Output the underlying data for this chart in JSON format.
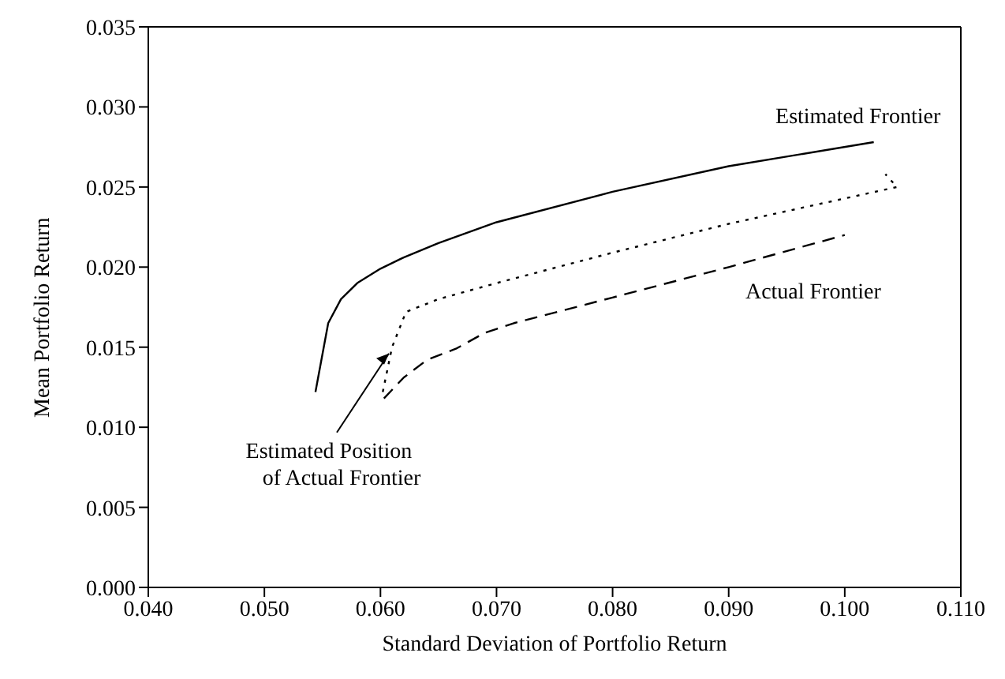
{
  "chart_data": {
    "type": "line",
    "xlabel": "Standard Deviation of Portfolio Return",
    "ylabel": "Mean Portfolio Return",
    "xlim": [
      0.04,
      0.11
    ],
    "ylim": [
      0,
      0.035
    ],
    "xticks": [
      {
        "value": 0.04,
        "label": "0.040"
      },
      {
        "value": 0.05,
        "label": "0.050"
      },
      {
        "value": 0.06,
        "label": "0.060"
      },
      {
        "value": 0.07,
        "label": "0.070"
      },
      {
        "value": 0.08,
        "label": "0.080"
      },
      {
        "value": 0.09,
        "label": "0.090"
      },
      {
        "value": 0.1,
        "label": "0.100"
      },
      {
        "value": 0.11,
        "label": "0.110"
      }
    ],
    "yticks": [
      {
        "value": 0,
        "label": "0.000"
      },
      {
        "value": 0.005,
        "label": "0.005"
      },
      {
        "value": 0.01,
        "label": "0.010"
      },
      {
        "value": 0.015,
        "label": "0.015"
      },
      {
        "value": 0.02,
        "label": "0.020"
      },
      {
        "value": 0.025,
        "label": "0.025"
      },
      {
        "value": 0.03,
        "label": "0.030"
      },
      {
        "value": 0.035,
        "label": "0.035"
      }
    ],
    "marker": "none",
    "series": [
      {
        "name": "Estimated Frontier",
        "color": "#000000",
        "line_style": "solid",
        "x": [
          0.0544,
          0.0555,
          0.0566,
          0.058,
          0.06,
          0.062,
          0.065,
          0.07,
          0.08,
          0.09,
          0.1025
        ],
        "values": [
          0.0122,
          0.0165,
          0.018,
          0.019,
          0.0199,
          0.0206,
          0.0215,
          0.0228,
          0.0247,
          0.0263,
          0.0278
        ]
      },
      {
        "name": "Estimated Position of Actual Frontier",
        "color": "#000000",
        "line_style": "dotted",
        "x": [
          0.0602,
          0.061,
          0.0622,
          0.065,
          0.07,
          0.08,
          0.09,
          0.1045,
          0.1035
        ],
        "values": [
          0.0122,
          0.015,
          0.0172,
          0.018,
          0.019,
          0.0209,
          0.0227,
          0.025,
          0.0258
        ]
      },
      {
        "name": "Actual Frontier",
        "color": "#000000",
        "line_style": "dashed",
        "x": [
          0.0603,
          0.062,
          0.064,
          0.0665,
          0.069,
          0.0715,
          0.08,
          0.09,
          0.1
        ],
        "values": [
          0.0118,
          0.0131,
          0.0142,
          0.0149,
          0.0159,
          0.0165,
          0.0181,
          0.02,
          0.022
        ]
      }
    ]
  }
}
